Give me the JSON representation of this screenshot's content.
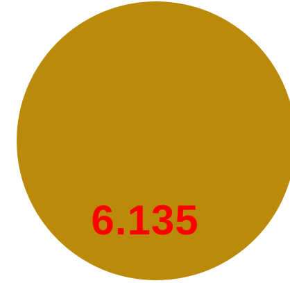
{
  "disc": {
    "color": "#bc8a0a"
  },
  "label": {
    "text": "6.135",
    "color": "#ff0000"
  }
}
